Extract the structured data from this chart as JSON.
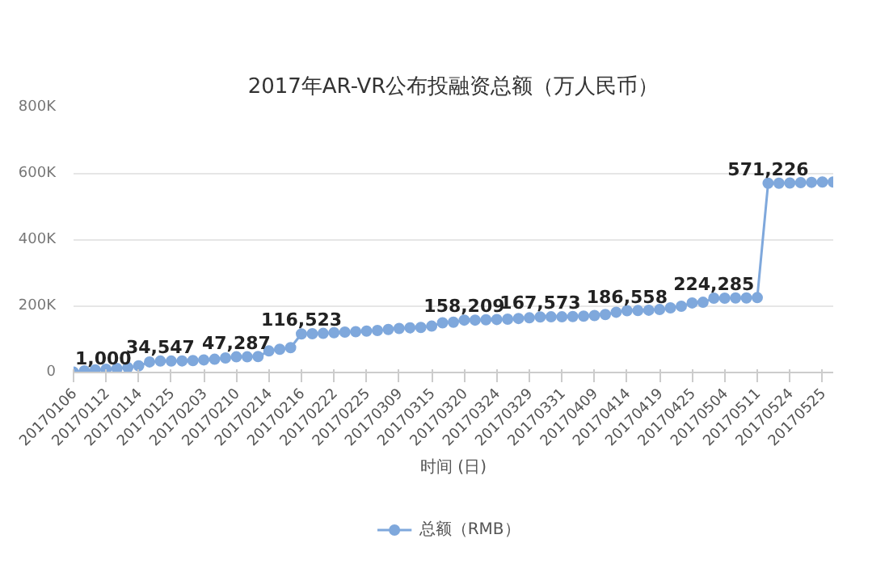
{
  "chart_data": {
    "type": "line",
    "title": "2017年AR-VR公布投融资总额（万人民币）",
    "xlabel": "时间 (日)",
    "categories": [
      "20170106",
      null,
      null,
      "20170112",
      null,
      null,
      "20170114",
      null,
      null,
      "20170125",
      null,
      null,
      "20170203",
      null,
      null,
      "20170210",
      null,
      null,
      "20170214",
      null,
      null,
      "20170216",
      null,
      null,
      "20170222",
      null,
      null,
      "20170225",
      null,
      null,
      "20170309",
      null,
      null,
      "20170315",
      null,
      null,
      "20170320",
      null,
      null,
      "20170324",
      null,
      null,
      "20170329",
      null,
      null,
      "20170331",
      null,
      null,
      "20170409",
      null,
      null,
      "20170414",
      null,
      null,
      "20170419",
      null,
      null,
      "20170425",
      null,
      null,
      "20170504",
      null,
      null,
      "20170511",
      null,
      null,
      "20170524",
      null,
      null,
      "20170525",
      null
    ],
    "series": [
      {
        "name": "总额（RMB）",
        "color": "#7fa8dc",
        "values": [
          1000,
          5000,
          8000,
          10000,
          12000,
          15000,
          20000,
          32000,
          34547,
          34547,
          35000,
          36000,
          38000,
          40000,
          44000,
          47287,
          47287,
          48000,
          65000,
          70000,
          75000,
          116523,
          117000,
          118000,
          120000,
          122000,
          123000,
          125000,
          127000,
          130000,
          133000,
          135000,
          136000,
          140000,
          150000,
          152000,
          158209,
          158209,
          159000,
          160000,
          161000,
          163000,
          165000,
          167573,
          168000,
          168000,
          169000,
          170000,
          172000,
          175000,
          182000,
          186558,
          187000,
          188000,
          190000,
          195000,
          200000,
          210000,
          212000,
          224285,
          224285,
          225000,
          225000,
          226000,
          571226,
          571226,
          572000,
          573000,
          574000,
          575000,
          575000
        ],
        "value_labels": [
          "1,000",
          null,
          null,
          null,
          null,
          null,
          null,
          null,
          "34,547",
          null,
          null,
          null,
          null,
          null,
          null,
          "47,287",
          null,
          null,
          null,
          null,
          null,
          "116,523",
          null,
          null,
          null,
          null,
          null,
          null,
          null,
          null,
          null,
          null,
          null,
          null,
          null,
          null,
          "158,209",
          null,
          null,
          null,
          null,
          null,
          null,
          "167,573",
          null,
          null,
          null,
          null,
          null,
          null,
          null,
          "186,558",
          null,
          null,
          null,
          null,
          null,
          null,
          null,
          "224,285",
          null,
          null,
          null,
          null,
          "571,226",
          null,
          null,
          null,
          null,
          null,
          null
        ]
      }
    ],
    "ylim": [
      0,
      800000
    ],
    "yticks": [
      {
        "value": 0,
        "label": "0"
      },
      {
        "value": 200000,
        "label": "200K"
      },
      {
        "value": 400000,
        "label": "400K"
      },
      {
        "value": 600000,
        "label": "600K"
      },
      {
        "value": 800000,
        "label": "800K"
      }
    ],
    "grid": "y",
    "legend": "bottom",
    "marker": "circle",
    "line_style": "solid"
  }
}
